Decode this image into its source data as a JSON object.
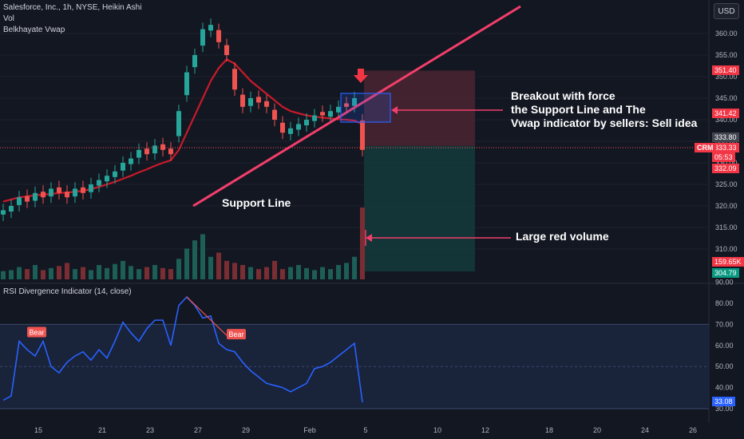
{
  "header": {
    "title": "Salesforce, Inc., 1h, NYSE, Heikin Ashi",
    "vol": "Vol",
    "vwap": "Belkhayate Vwap",
    "rsi_title": "RSI Divergence Indicator (14, close)",
    "currency": "USD",
    "crm_tag": "CRM"
  },
  "colors": {
    "background": "#131722",
    "bull": "#26a69a",
    "bear": "#ef5350",
    "trendline": "#f23e6a",
    "vwap_red": "#c91a2a",
    "vwap_green": "#1f6b58",
    "rsi_line": "#2962ff",
    "rsi_band": "#1c2a45",
    "stop_zone": "#4a2530",
    "target_zone": "#15393a",
    "entry_box": "#2962ff"
  },
  "annotations": {
    "breakout": [
      "Breakout with force",
      "the Support Line and The",
      "Vwap indicator by sellers: Sell idea"
    ],
    "support": "Support Line",
    "volume": "Large red volume"
  },
  "price_tags": {
    "stop": "351.40",
    "entry_upper": "341.42",
    "last_high": "333.80",
    "current": "333.33",
    "countdown": "05:53",
    "low": "332.09",
    "volume": "159.65K",
    "target": "304.79",
    "rsi_value": "33.08"
  },
  "chart_data": {
    "type": "candlestick",
    "price_axis": {
      "ticks": [
        360.0,
        355.0,
        350.0,
        345.0,
        340.0,
        335.0,
        330.0,
        325.0,
        320.0,
        315.0,
        310.0
      ],
      "tick_labels": [
        "360.00",
        "355.00",
        "350.00",
        "345.00",
        "340.00",
        "335.00",
        "330.00",
        "325.00",
        "320.00",
        "315.00",
        "310.00"
      ]
    },
    "x_axis_labels": [
      {
        "label": "15",
        "index": 4
      },
      {
        "label": "21",
        "index": 12
      },
      {
        "label": "23",
        "index": 18
      },
      {
        "label": "27",
        "index": 24
      },
      {
        "label": "29",
        "index": 30
      },
      {
        "label": "Feb",
        "index": 38
      },
      {
        "label": "5",
        "index": 45
      },
      {
        "label": "10",
        "index": 54
      },
      {
        "label": "12",
        "index": 60
      },
      {
        "label": "18",
        "index": 68
      },
      {
        "label": "20",
        "index": 74
      },
      {
        "label": "24",
        "index": 80
      },
      {
        "label": "26",
        "index": 86
      }
    ],
    "close_series": [
      319,
      320,
      322,
      321,
      323,
      322,
      324,
      323,
      322,
      324,
      323,
      325,
      326,
      327,
      328,
      330,
      331,
      333,
      332,
      334,
      333,
      332,
      342,
      351,
      355,
      361,
      362,
      358,
      355,
      347,
      343,
      345,
      344,
      343,
      340,
      337,
      338,
      339,
      340,
      341,
      341,
      342,
      343,
      343,
      345,
      333
    ],
    "vwap_series": [
      321,
      321.5,
      322,
      322.2,
      322.5,
      322.6,
      322.8,
      323,
      323.1,
      323.3,
      323.5,
      323.9,
      324.4,
      325,
      325.6,
      326.3,
      327,
      327.8,
      328.5,
      329.3,
      330,
      330.6,
      333,
      337,
      341,
      345,
      349,
      352,
      354,
      353,
      351,
      349,
      347.5,
      346,
      344.5,
      343,
      342,
      341.5,
      341,
      340.7,
      340.5,
      340.3,
      340.1,
      340,
      339.8,
      339
    ],
    "volume": {
      "axis_ticks": [],
      "values": [
        8,
        9,
        12,
        10,
        14,
        9,
        11,
        13,
        16,
        10,
        12,
        9,
        14,
        11,
        15,
        18,
        13,
        10,
        12,
        14,
        11,
        10,
        20,
        30,
        38,
        44,
        22,
        26,
        18,
        16,
        14,
        12,
        10,
        12,
        18,
        10,
        12,
        14,
        11,
        9,
        12,
        10,
        14,
        16,
        22,
        70
      ]
    },
    "rsi": {
      "axis_ticks": [
        30,
        40,
        50,
        60,
        70,
        80,
        90
      ],
      "tick_labels": [
        "30.00",
        "40.00",
        "50.00",
        "60.00",
        "70.00",
        "80.00",
        "90.00"
      ],
      "band": [
        30,
        70
      ],
      "values": [
        34,
        36,
        62,
        58,
        55,
        62,
        50,
        47,
        52,
        55,
        57,
        53,
        58,
        54,
        62,
        71,
        66,
        62,
        68,
        72,
        72,
        60,
        79,
        83,
        79,
        73,
        74,
        61,
        58,
        57,
        52,
        48,
        45,
        42,
        41,
        40,
        38,
        40,
        42,
        49,
        50,
        52,
        55,
        58,
        61,
        33
      ],
      "bear_labels": [
        {
          "text": "Bear",
          "index": 2
        },
        {
          "text": "Bear",
          "index": 27
        }
      ]
    },
    "trade_setup": {
      "entry": 341.42,
      "stop": 351.4,
      "target": 304.79
    }
  }
}
